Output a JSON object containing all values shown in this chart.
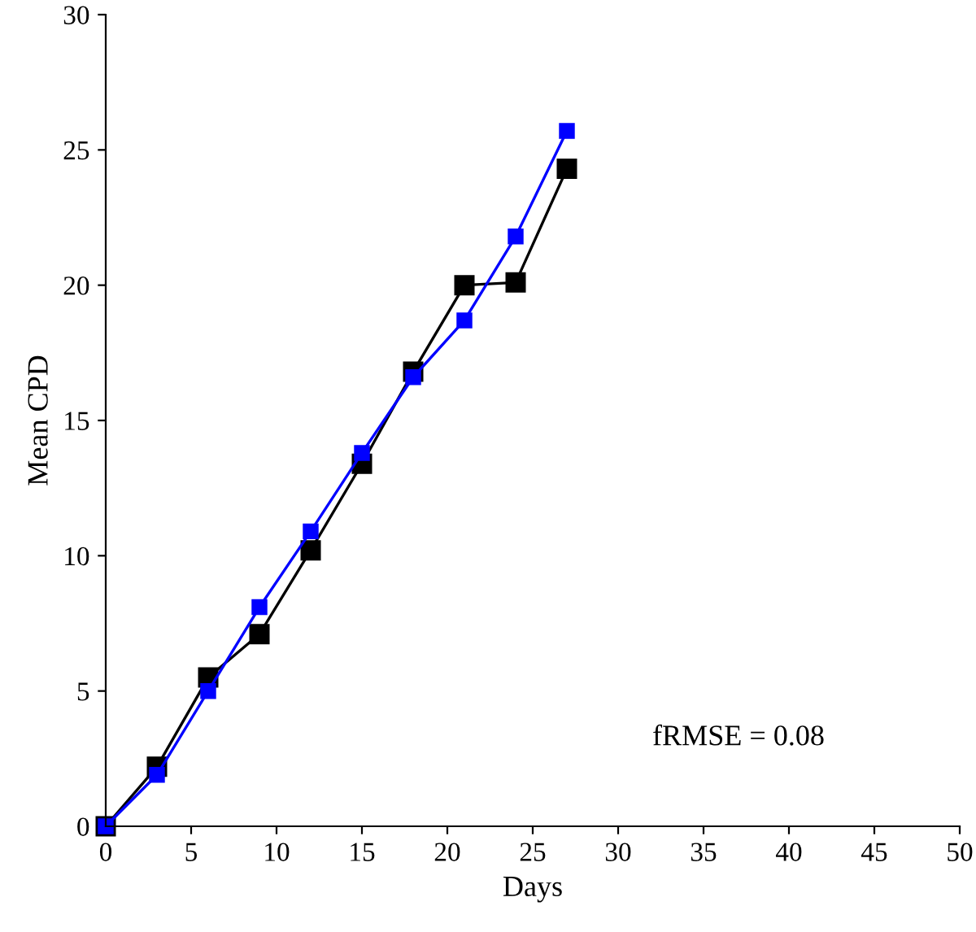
{
  "chart_data": {
    "type": "line",
    "xlabel": "Days",
    "ylabel": "Mean CPD",
    "x": [
      0,
      3,
      6,
      9,
      12,
      15,
      18,
      21,
      24,
      27
    ],
    "series": [
      {
        "color": "#000000",
        "values": [
          0,
          2.2,
          5.5,
          7.1,
          10.2,
          13.4,
          16.8,
          20.0,
          20.1,
          24.3
        ]
      },
      {
        "color": "#0000ff",
        "values": [
          0,
          1.9,
          5.0,
          8.1,
          10.9,
          13.8,
          16.6,
          18.7,
          21.8,
          25.7
        ]
      }
    ],
    "xlim": [
      0,
      50
    ],
    "ylim": [
      0,
      30
    ],
    "xticks": [
      0,
      5,
      10,
      15,
      20,
      25,
      30,
      35,
      40,
      45,
      50
    ],
    "yticks": [
      0,
      5,
      10,
      15,
      20,
      25,
      30
    ],
    "marker": "square",
    "grid": false,
    "legend": false,
    "annotations": [
      {
        "text": "fRMSE = 0.08"
      }
    ]
  }
}
